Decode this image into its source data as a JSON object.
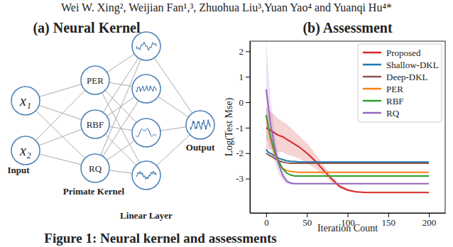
{
  "header": {
    "authors": "Wei W. Xing², Weijian Fan¹,³, Zhuohua Liu³,Yuan Yao⁴ and Yuanqi Hu⁴*"
  },
  "diagram": {
    "title": "(a) Neural Kernel",
    "inputs": [
      "x₁",
      "x₂"
    ],
    "input_label": "Input",
    "kernels": [
      "PER",
      "RBF",
      "RQ"
    ],
    "kernel_label": "Primate Kernel",
    "linear_label": "Linear Layer",
    "output_label": "Output"
  },
  "chart_data": {
    "type": "line",
    "title": "(b) Assessment",
    "x_label": "Iteration Count",
    "y_label": "Log(Test Mse)",
    "x": [
      0,
      2,
      5,
      10,
      15,
      20,
      25,
      30,
      35,
      40,
      50,
      60,
      70,
      80,
      90,
      100,
      110,
      125,
      150,
      175,
      200
    ],
    "series": [
      {
        "name": "Proposed",
        "color": "#d62728",
        "values": [
          -1.0,
          -1.05,
          -1.1,
          -1.2,
          -1.3,
          -1.35,
          -1.45,
          -1.55,
          -1.65,
          -1.75,
          -2.0,
          -2.3,
          -2.65,
          -3.0,
          -3.3,
          -3.45,
          -3.52,
          -3.55,
          -3.55,
          -3.55,
          -3.55
        ],
        "std": [
          0.8,
          0.8,
          0.75,
          0.7,
          0.65,
          0.6,
          0.6,
          0.55,
          0.5,
          0.45,
          0.4,
          0.3,
          0.2,
          0.12,
          0.08,
          0.05,
          0.03,
          0.02,
          0.02,
          0.02,
          0.02
        ]
      },
      {
        "name": "Shallow-DKL",
        "color": "#1f77b4",
        "values": [
          -1.85,
          -1.95,
          -2.0,
          -2.1,
          -2.2,
          -2.25,
          -2.3,
          -2.32,
          -2.33,
          -2.34,
          -2.35,
          -2.35,
          -2.35,
          -2.35,
          -2.35,
          -2.35,
          -2.35,
          -2.35,
          -2.35,
          -2.35,
          -2.35
        ]
      },
      {
        "name": "Deep-DKL",
        "color": "#8c564b",
        "values": [
          -2.0,
          -2.05,
          -2.1,
          -2.2,
          -2.3,
          -2.35,
          -2.38,
          -2.4,
          -2.4,
          -2.4,
          -2.4,
          -2.4,
          -2.4,
          -2.4,
          -2.4,
          -2.4,
          -2.4,
          -2.4,
          -2.4,
          -2.4,
          -2.4
        ]
      },
      {
        "name": "PER",
        "color": "#ff7f0e",
        "values": [
          -0.5,
          -0.9,
          -1.4,
          -2.0,
          -2.4,
          -2.6,
          -2.68,
          -2.72,
          -2.74,
          -2.75,
          -2.75,
          -2.75,
          -2.75,
          -2.75,
          -2.75,
          -2.75,
          -2.75,
          -2.75,
          -2.75,
          -2.75,
          -2.75
        ]
      },
      {
        "name": "RBF",
        "color": "#2ca02c",
        "values": [
          -0.5,
          -0.85,
          -1.3,
          -1.9,
          -2.3,
          -2.6,
          -2.78,
          -2.86,
          -2.9,
          -2.9,
          -2.9,
          -2.9,
          -2.9,
          -2.9,
          -2.9,
          -2.9,
          -2.9,
          -2.9,
          -2.9,
          -2.9,
          -2.9
        ]
      },
      {
        "name": "RQ",
        "color": "#9467bd",
        "values": [
          0.5,
          0.0,
          -0.8,
          -1.7,
          -2.4,
          -2.85,
          -3.1,
          -3.18,
          -3.2,
          -3.2,
          -3.2,
          -3.2,
          -3.2,
          -3.2,
          -3.2,
          -3.2,
          -3.2,
          -3.2,
          -3.2,
          -3.2,
          -3.2
        ],
        "std": [
          2.0,
          1.5,
          1.0,
          0.6,
          0.4,
          0.2,
          0.1,
          0.05,
          0.03,
          0.02,
          0.02,
          0.02,
          0.02,
          0.02,
          0.02,
          0.02,
          0.02,
          0.02,
          0.02,
          0.02,
          0.02
        ]
      }
    ],
    "xlim": [
      -20,
      220
    ],
    "ylim": [
      -4.35,
      2.4
    ],
    "xticks": [
      0,
      50,
      100,
      150,
      200
    ],
    "yticks": [
      -3,
      -2,
      -1,
      0,
      1,
      2
    ],
    "legend": "upper right",
    "grid": false
  },
  "caption": "Figure 1: Neural kernel and assessments"
}
